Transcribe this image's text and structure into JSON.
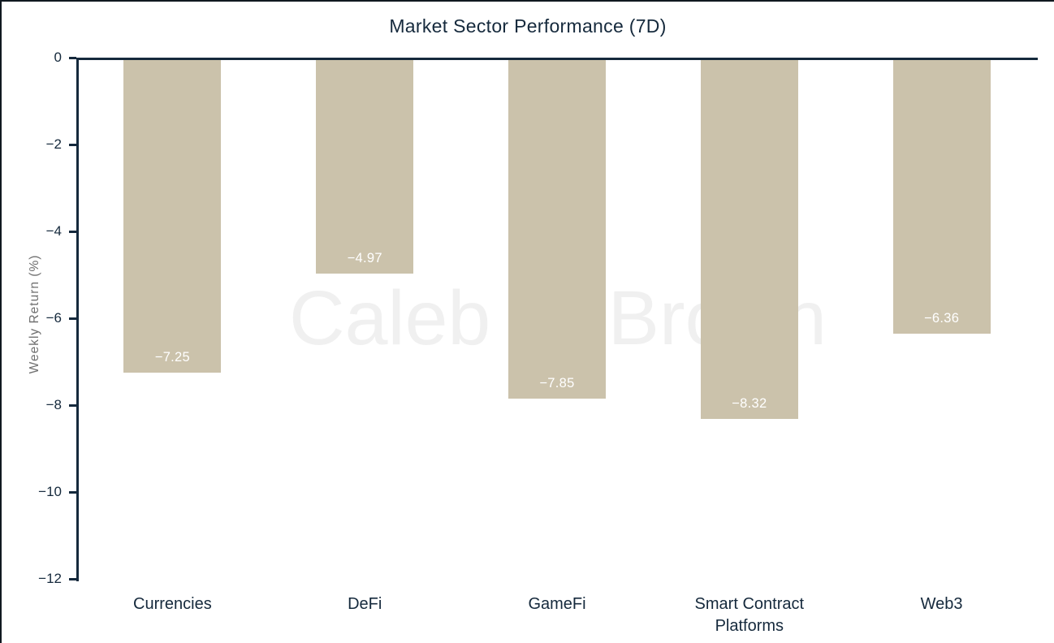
{
  "page": {
    "background": "#ffffff",
    "frame_border_color": "#101820"
  },
  "watermark": {
    "text": "Caleb Brown",
    "color": "#f0f0f0"
  },
  "chart_data": {
    "type": "bar",
    "title": "Market Sector Performance (7D)",
    "categories": [
      "Currencies",
      "DeFi",
      "GameFi",
      "Smart Contract Platforms",
      "Web3"
    ],
    "values": [
      -7.25,
      -4.97,
      -7.85,
      -8.32,
      -6.36
    ],
    "value_labels": [
      "−7.25",
      "−4.97",
      "−7.85",
      "−8.32",
      "−6.36"
    ],
    "xlabel": "",
    "ylabel": "Weekly Return (%)",
    "ylim": [
      -12,
      0
    ],
    "yticks": [
      0,
      -2,
      -4,
      -6,
      -8,
      -10,
      -12
    ],
    "ytick_labels": [
      "0",
      "−2",
      "−4",
      "−6",
      "−8",
      "−10",
      "−12"
    ],
    "bar_color": "#cbc2ab",
    "value_label_color": "#ffffff",
    "axis_color": "#15293c",
    "tick_label_color": "#15293c",
    "ylabel_color": "#6f6f6f",
    "grid": false,
    "legend": false,
    "value_labels_position": "inside-bottom",
    "baseline": "top-zero-line"
  }
}
